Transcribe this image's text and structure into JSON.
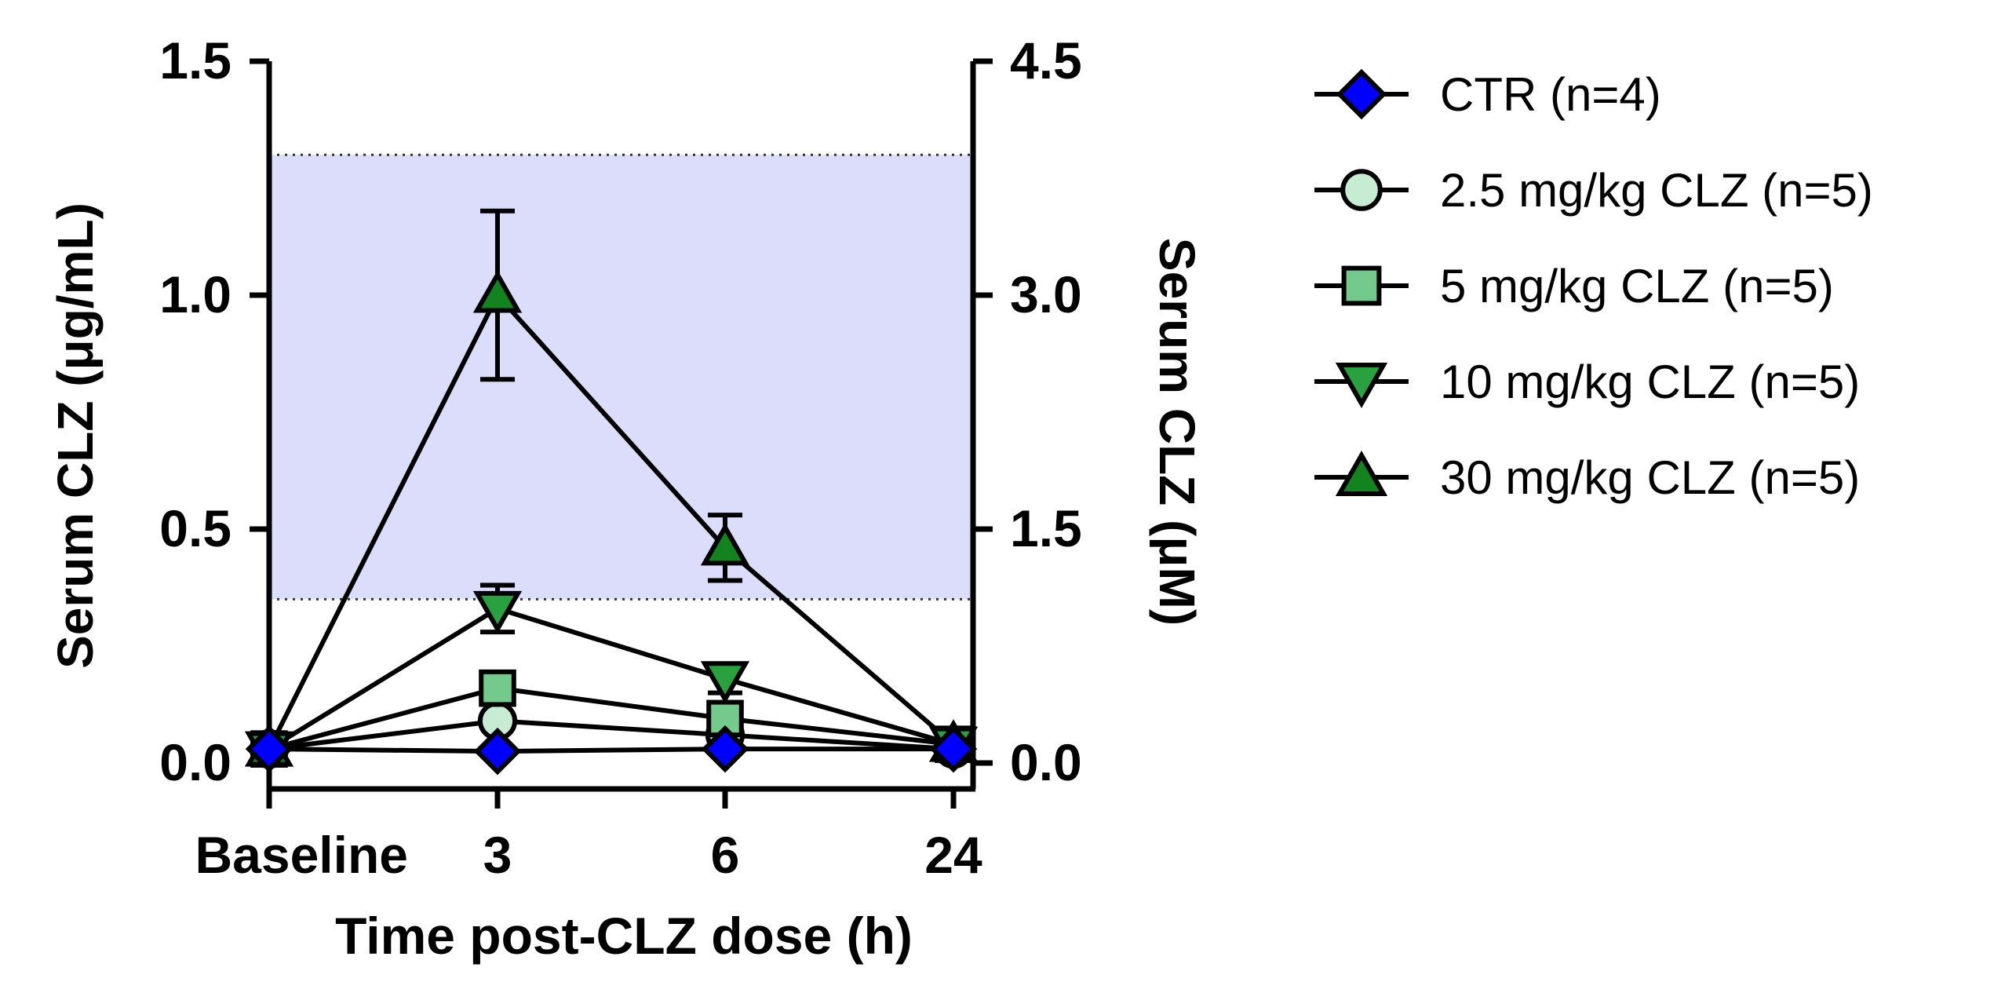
{
  "chart_data": {
    "type": "line",
    "categories": [
      "Baseline",
      "3",
      "6",
      "24"
    ],
    "xlabel": "Time post-CLZ dose (h)",
    "ylabel": "Serum CLZ (μg/mL)",
    "ylabel_right": "Serum CLZ (μM)",
    "ylim": [
      0,
      1.5
    ],
    "ylim_right": [
      0,
      4.5
    ],
    "yticks": [
      "0.0",
      "0.5",
      "1.0",
      "1.5"
    ],
    "yticks_right": [
      "0.0",
      "1.5",
      "3.0",
      "4.5"
    ],
    "therapeutic_range": [
      0.35,
      1.3
    ],
    "series": [
      {
        "name": "CTR (n=4)",
        "marker": "diamond",
        "color": "#0000ff",
        "values": [
          0.03,
          0.025,
          0.03,
          0.03
        ],
        "errors": [
          0,
          0,
          0,
          0
        ]
      },
      {
        "name": "2.5 mg/kg CLZ (n=5)",
        "marker": "circle",
        "color": "#c8ecd3",
        "values": [
          0.03,
          0.09,
          0.06,
          0.03
        ],
        "errors": [
          0,
          0,
          0,
          0
        ]
      },
      {
        "name": "5 mg/kg CLZ (n=5)",
        "marker": "square",
        "color": "#74c98c",
        "values": [
          0.03,
          0.16,
          0.095,
          0.04
        ],
        "errors": [
          0,
          0,
          0,
          0
        ]
      },
      {
        "name": "10 mg/kg CLZ (n=5)",
        "marker": "triangle-down",
        "color": "#2aa13f",
        "values": [
          0.03,
          0.33,
          0.18,
          0.04
        ],
        "errors": [
          0,
          0.05,
          0.03,
          0
        ]
      },
      {
        "name": "30 mg/kg CLZ (n=5)",
        "marker": "triangle-up",
        "color": "#12831f",
        "values": [
          0.03,
          1.0,
          0.46,
          0.04
        ],
        "errors": [
          0,
          0.18,
          0.07,
          0
        ]
      }
    ]
  }
}
